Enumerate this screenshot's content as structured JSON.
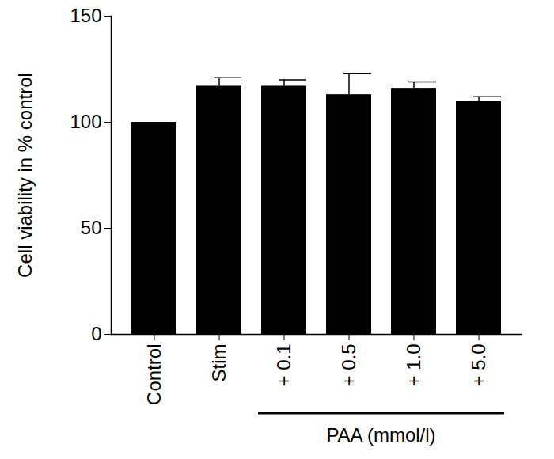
{
  "chart_data": {
    "type": "bar",
    "y_label": "Cell viability in % control",
    "categories": [
      "Control",
      "Stim",
      "+ 0.1",
      "+ 0.5",
      "+ 1.0",
      "+ 5.0"
    ],
    "values": [
      100,
      117,
      117,
      113,
      116,
      110
    ],
    "errors": [
      0,
      4,
      3,
      10,
      3,
      2
    ],
    "color": "#000000",
    "ylim": [
      0,
      150
    ],
    "yticks": [
      0,
      50,
      100,
      150
    ],
    "grid": false,
    "annotation": {
      "text": "PAA (mmol/l)",
      "span": [
        "+ 0.1",
        "+ 5.0"
      ]
    }
  }
}
